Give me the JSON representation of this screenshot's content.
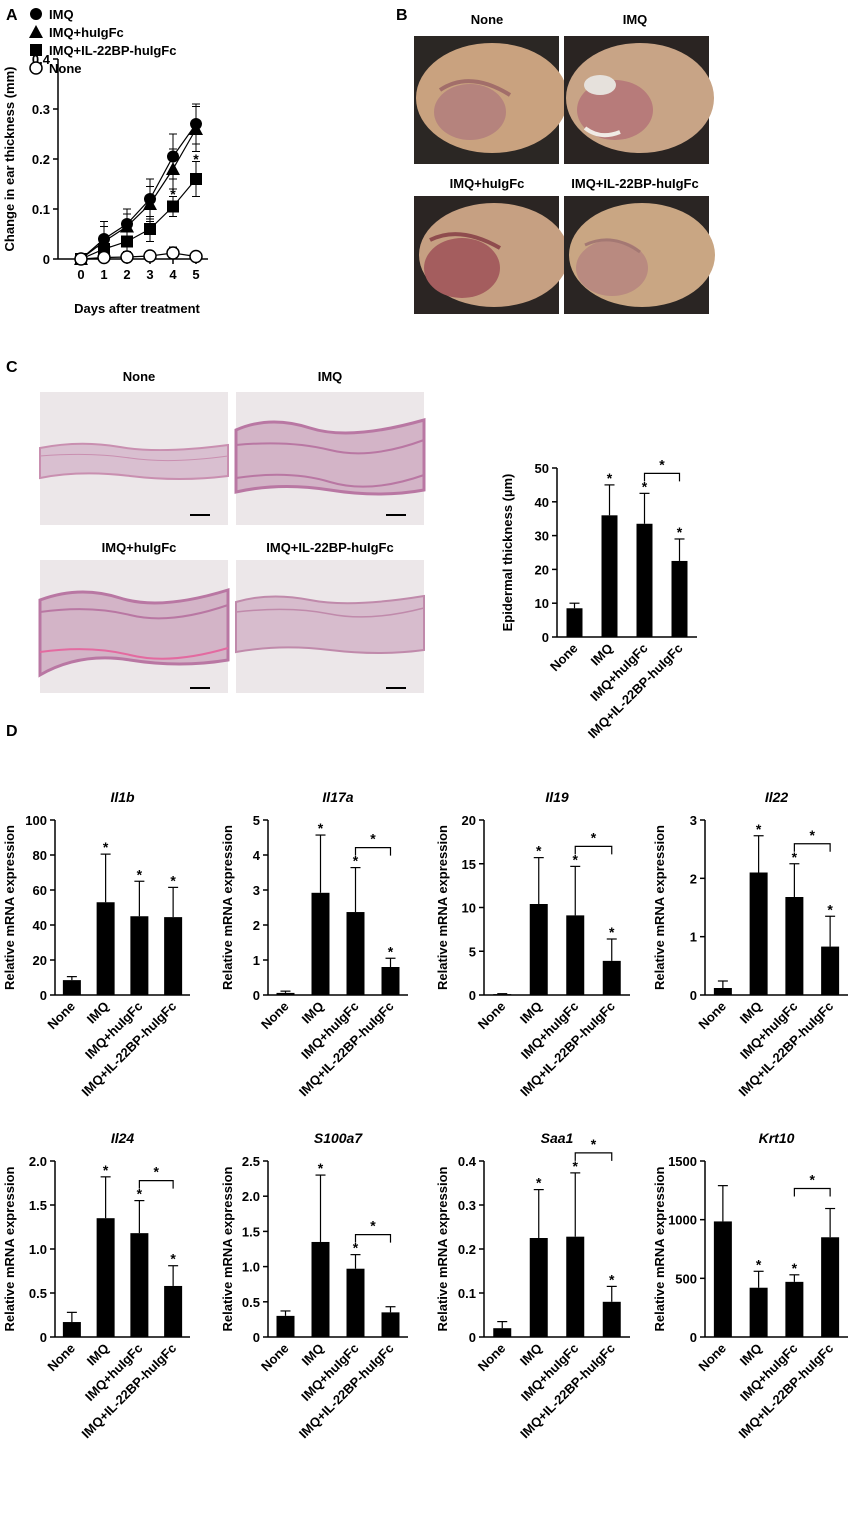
{
  "panel_letters": {
    "a": "A",
    "b": "B",
    "c": "C",
    "d": "D"
  },
  "photo_labels": {
    "b": [
      "None",
      "IMQ",
      "IMQ+huIgFc",
      "IMQ+IL-22BP-huIgFc"
    ],
    "c": [
      "None",
      "IMQ",
      "IMQ+huIgFc",
      "IMQ+IL-22BP-huIgFc"
    ]
  },
  "colors": {
    "ink": "#000000",
    "open_marker": "#ffffff",
    "tissue_pink": "#c98fb0",
    "tissue_bg": "#ece7e9",
    "skin": "#c9a27f"
  },
  "chart_data": [
    {
      "id": "A",
      "type": "line",
      "xlabel": "Days after treatment",
      "ylabel": "Change in ear thickness (mm)",
      "x": [
        0,
        1,
        2,
        3,
        4,
        5
      ],
      "xticks": [
        "0",
        "1",
        "2",
        "3",
        "4",
        "5"
      ],
      "ylim": [
        0,
        0.4
      ],
      "yticks": [
        "0",
        "0.1",
        "0.2",
        "0.3",
        "0.4"
      ],
      "legend_position": "top-left",
      "series": [
        {
          "name": "IMQ",
          "marker": "circle-filled",
          "values": [
            0,
            0.04,
            0.07,
            0.12,
            0.205,
            0.27
          ],
          "errors": [
            0,
            0.035,
            0.03,
            0.04,
            0.045,
            0.04
          ]
        },
        {
          "name": "IMQ+huIgFc",
          "marker": "triangle-filled",
          "values": [
            0,
            0.035,
            0.065,
            0.11,
            0.18,
            0.26
          ],
          "errors": [
            0,
            0.03,
            0.025,
            0.035,
            0.04,
            0.045
          ]
        },
        {
          "name": "IMQ+IL-22BP-huIgFc",
          "marker": "square-filled",
          "values": [
            0,
            0.02,
            0.035,
            0.06,
            0.105,
            0.16
          ],
          "errors": [
            0,
            0.02,
            0.02,
            0.025,
            0.02,
            0.035
          ]
        },
        {
          "name": "None",
          "marker": "circle-open",
          "values": [
            0,
            0.003,
            0.004,
            0.006,
            0.012,
            0.005
          ],
          "errors": [
            0,
            0.003,
            0.003,
            0.004,
            0.012,
            0.005
          ]
        }
      ],
      "annotations": [
        {
          "x": 4,
          "y": 0.13,
          "text": "*"
        },
        {
          "x": 5,
          "y": 0.2,
          "text": "*"
        }
      ]
    },
    {
      "id": "C",
      "type": "bar",
      "ylabel": "Epidermal thickness (µm)",
      "categories": [
        "None",
        "IMQ",
        "IMQ+huIgFc",
        "IMQ+IL-22BP-huIgFc"
      ],
      "values": [
        8.5,
        36,
        33.5,
        22.5
      ],
      "errors": [
        1.5,
        9,
        9,
        6.5
      ],
      "ylim": [
        0,
        50
      ],
      "yticks": [
        "0",
        "10",
        "20",
        "30",
        "40",
        "50"
      ],
      "stars": [
        "",
        "*",
        "*",
        "*"
      ],
      "bracket": {
        "from": 2,
        "to": 3,
        "text": "*"
      }
    },
    {
      "id": "D1",
      "type": "bar",
      "title": "Il1b",
      "ylabel": "Relative mRNA expression",
      "categories": [
        "None",
        "IMQ",
        "IMQ+huIgFc",
        "IMQ+IL-22BP-huIgFc"
      ],
      "values": [
        8.5,
        53,
        45,
        44.5
      ],
      "errors": [
        2,
        27.5,
        20,
        17
      ],
      "ylim": [
        0,
        100
      ],
      "yticks": [
        "0",
        "20",
        "40",
        "60",
        "80",
        "100"
      ],
      "stars": [
        "",
        "*",
        "*",
        "*"
      ],
      "bracket": null
    },
    {
      "id": "D2",
      "type": "bar",
      "title": "Il17a",
      "ylabel": "Relative mRNA expression",
      "categories": [
        "None",
        "IMQ",
        "IMQ+huIgFc",
        "IMQ+IL-22BP-huIgFc"
      ],
      "values": [
        0.06,
        2.92,
        2.37,
        0.8
      ],
      "errors": [
        0.05,
        1.65,
        1.27,
        0.25
      ],
      "ylim": [
        0,
        5
      ],
      "yticks": [
        "0",
        "1",
        "2",
        "3",
        "4",
        "5"
      ],
      "stars": [
        "",
        "*",
        "*",
        "*"
      ],
      "bracket": {
        "from": 2,
        "to": 3,
        "text": "*"
      }
    },
    {
      "id": "D3",
      "type": "bar",
      "title": "Il19",
      "ylabel": "Relative mRNA expression",
      "categories": [
        "None",
        "IMQ",
        "IMQ+huIgFc",
        "IMQ+IL-22BP-huIgFc"
      ],
      "values": [
        0.1,
        10.4,
        9.1,
        3.9
      ],
      "errors": [
        0.05,
        5.3,
        5.6,
        2.5
      ],
      "ylim": [
        0,
        20
      ],
      "yticks": [
        "0",
        "5",
        "10",
        "15",
        "20"
      ],
      "stars": [
        "",
        "*",
        "*",
        "*"
      ],
      "bracket": {
        "from": 2,
        "to": 3,
        "text": "*"
      }
    },
    {
      "id": "D4",
      "type": "bar",
      "title": "Il22",
      "ylabel": "Relative mRNA expression",
      "categories": [
        "None",
        "IMQ",
        "IMQ+huIgFc",
        "IMQ+IL-22BP-huIgFc"
      ],
      "values": [
        0.12,
        2.1,
        1.68,
        0.83
      ],
      "errors": [
        0.12,
        0.63,
        0.57,
        0.52
      ],
      "ylim": [
        0,
        3
      ],
      "yticks": [
        "0",
        "1",
        "2",
        "3"
      ],
      "stars": [
        "",
        "*",
        "*",
        "*"
      ],
      "bracket": {
        "from": 2,
        "to": 3,
        "text": "*"
      }
    },
    {
      "id": "D5",
      "type": "bar",
      "title": "Il24",
      "ylabel": "Relative mRNA expression",
      "categories": [
        "None",
        "IMQ",
        "IMQ+huIgFc",
        "IMQ+IL-22BP-huIgFc"
      ],
      "values": [
        0.17,
        1.35,
        1.18,
        0.58
      ],
      "errors": [
        0.11,
        0.47,
        0.37,
        0.23
      ],
      "ylim": [
        0,
        2
      ],
      "yticks": [
        "0",
        "0.5",
        "1.0",
        "1.5",
        "2.0"
      ],
      "stars": [
        "",
        "*",
        "*",
        "*"
      ],
      "bracket": {
        "from": 2,
        "to": 3,
        "text": "*"
      }
    },
    {
      "id": "D6",
      "type": "bar",
      "title": "S100a7",
      "ylabel": "Relative mRNA expression",
      "categories": [
        "None",
        "IMQ",
        "IMQ+huIgFc",
        "IMQ+IL-22BP-huIgFc"
      ],
      "values": [
        0.3,
        1.35,
        0.97,
        0.35
      ],
      "errors": [
        0.07,
        0.95,
        0.2,
        0.08
      ],
      "ylim": [
        0,
        2.5
      ],
      "yticks": [
        "0",
        "0.5",
        "1.0",
        "1.5",
        "2.0",
        "2.5"
      ],
      "stars": [
        "",
        "*",
        "*",
        ""
      ],
      "bracket": {
        "from": 2,
        "to": 3,
        "text": "*"
      }
    },
    {
      "id": "D7",
      "type": "bar",
      "title": "Saa1",
      "ylabel": "Relative mRNA expression",
      "categories": [
        "None",
        "IMQ",
        "IMQ+huIgFc",
        "IMQ+IL-22BP-huIgFc"
      ],
      "values": [
        0.02,
        0.225,
        0.228,
        0.08
      ],
      "errors": [
        0.015,
        0.11,
        0.145,
        0.035
      ],
      "ylim": [
        0,
        0.4
      ],
      "yticks": [
        "0",
        "0.1",
        "0.2",
        "0.3",
        "0.4"
      ],
      "stars": [
        "",
        "*",
        "*",
        "*"
      ],
      "bracket": {
        "from": 2,
        "to": 3,
        "text": "*"
      }
    },
    {
      "id": "D8",
      "type": "bar",
      "title": "Krt10",
      "ylabel": "Relative mRNA expression",
      "categories": [
        "None",
        "IMQ",
        "IMQ+huIgFc",
        "IMQ+IL-22BP-huIgFc"
      ],
      "values": [
        985,
        420,
        470,
        850
      ],
      "errors": [
        305,
        140,
        60,
        245
      ],
      "ylim": [
        0,
        1500
      ],
      "yticks": [
        "0",
        "500",
        "1000",
        "1500"
      ],
      "stars": [
        "",
        "*",
        "*",
        ""
      ],
      "bracket": {
        "from": 2,
        "to": 3,
        "text": "*"
      }
    }
  ]
}
